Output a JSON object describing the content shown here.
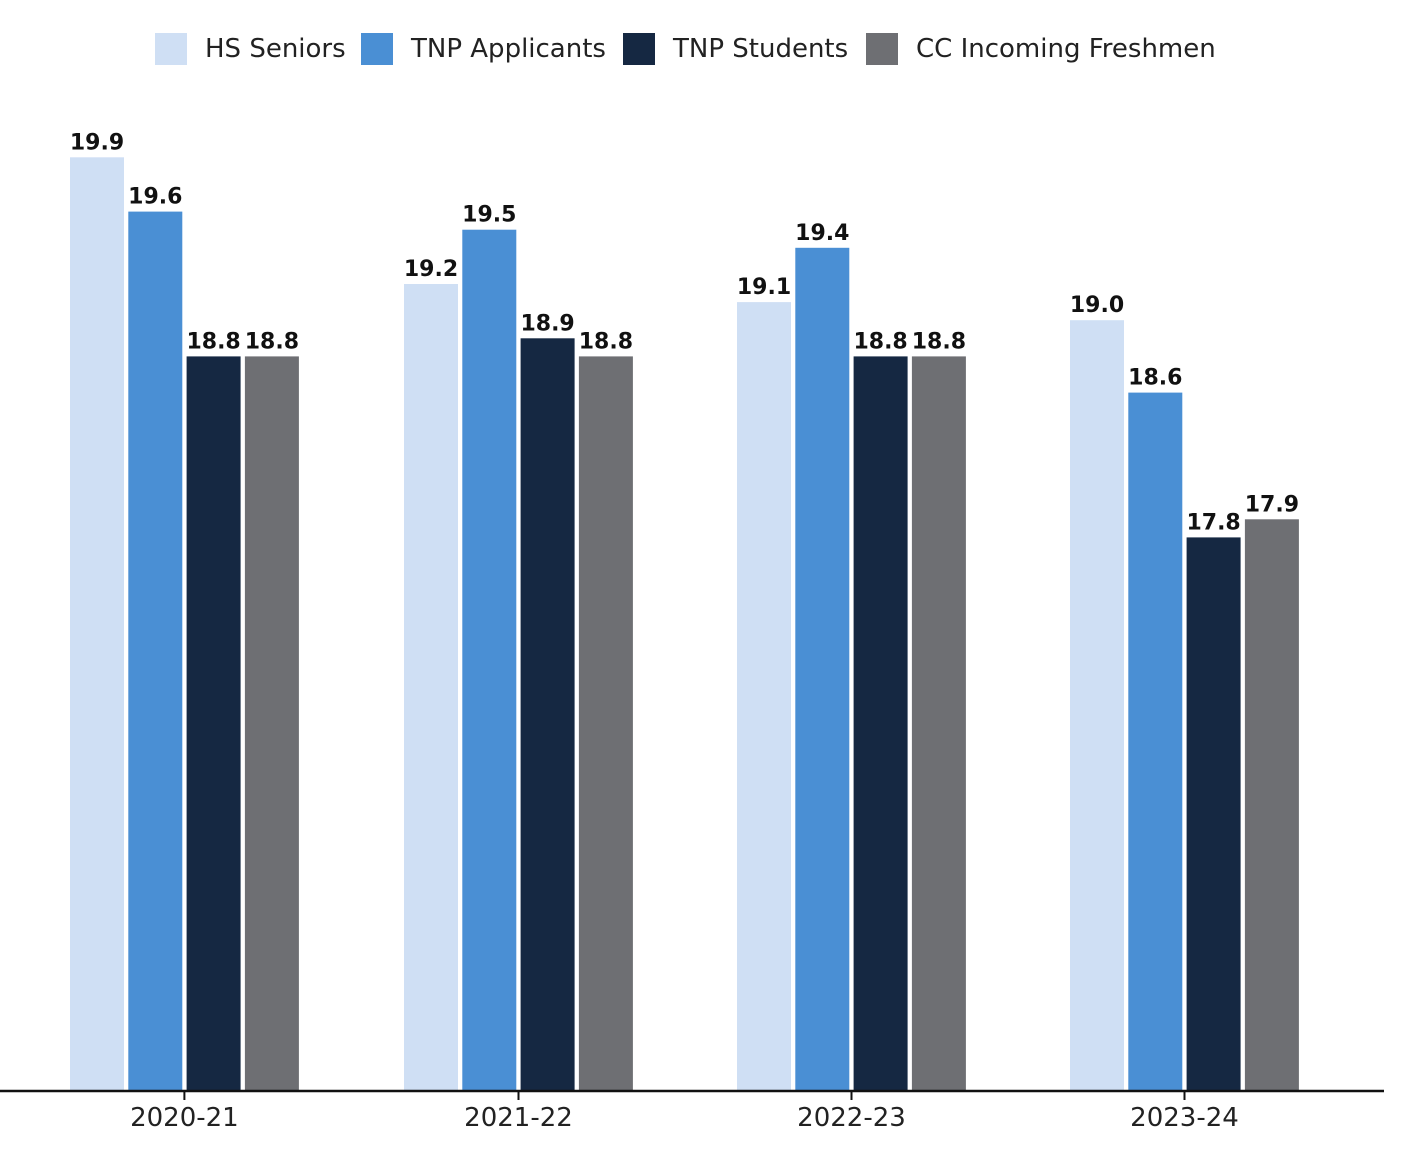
{
  "chart_data": {
    "type": "bar",
    "title": "",
    "xlabel": "",
    "ylabel": "",
    "categories": [
      "2020-21",
      "2021-22",
      "2022-23",
      "2023-24"
    ],
    "series": [
      {
        "name": "HS Seniors",
        "color": "#cfdff4",
        "values": [
          19.9,
          19.2,
          19.1,
          19.0
        ]
      },
      {
        "name": "TNP Applicants",
        "color": "#4a8fd4",
        "values": [
          19.6,
          19.5,
          19.4,
          18.6
        ]
      },
      {
        "name": "TNP Students",
        "color": "#152842",
        "values": [
          18.8,
          18.9,
          18.8,
          17.8
        ]
      },
      {
        "name": "CC Incoming Freshmen",
        "color": "#6e6f73",
        "values": [
          18.8,
          18.8,
          18.8,
          17.9
        ]
      }
    ],
    "value_labels": [
      [
        "19.9",
        "19.2",
        "19.1",
        "19.0"
      ],
      [
        "19.6",
        "19.5",
        "19.4",
        "18.6"
      ],
      [
        "18.8",
        "18.9",
        "18.8",
        "17.8"
      ],
      [
        "18.8",
        "18.8",
        "18.8",
        "17.9"
      ]
    ],
    "legend_position": "top",
    "grid": false
  }
}
